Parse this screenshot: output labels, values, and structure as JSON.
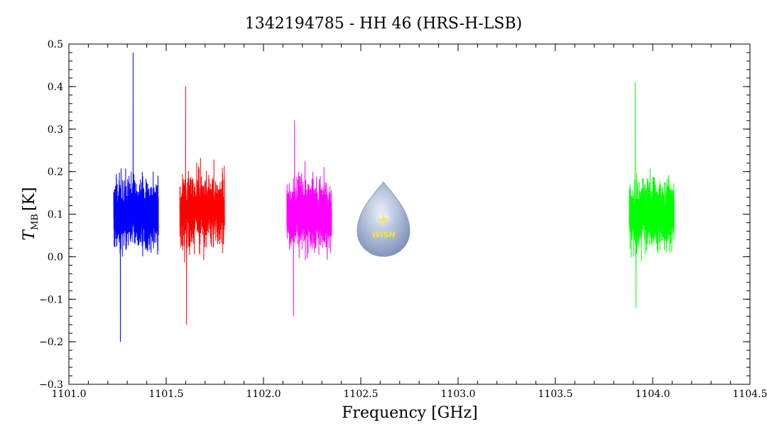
{
  "chart_data": {
    "type": "line",
    "title": "1342194785 - HH 46 (HRS-H-LSB)",
    "xlabel": "Frequency [GHz]",
    "ylabel_main": "T",
    "ylabel_sub": "MB",
    "ylabel_unit": "[K]",
    "xlim": [
      1101.0,
      1104.5
    ],
    "ylim": [
      -0.3,
      0.5
    ],
    "x_ticks": [
      1101.0,
      1101.5,
      1102.0,
      1102.5,
      1103.0,
      1103.5,
      1104.0,
      1104.5
    ],
    "x_tick_labels": [
      "1101.0",
      "1101.5",
      "1102.0",
      "1102.5",
      "1103.0",
      "1103.5",
      "1104.0",
      "1104.5"
    ],
    "y_ticks": [
      -0.3,
      -0.2,
      -0.1,
      0.0,
      0.1,
      0.2,
      0.3,
      0.4,
      0.5
    ],
    "y_tick_labels": [
      "−0.3",
      "−0.2",
      "−0.1",
      "0.0",
      "0.1",
      "0.2",
      "0.3",
      "0.4",
      "0.5"
    ],
    "grid": false,
    "series": [
      {
        "color": "#0000ff",
        "x_start": 1101.23,
        "x_end": 1101.46,
        "baseline": 0.1,
        "min": -0.2,
        "max": 0.48,
        "peak_x": 1101.33
      },
      {
        "color": "#ff0000",
        "x_start": 1101.57,
        "x_end": 1101.8,
        "baseline": 0.11,
        "min": -0.16,
        "max": 0.4,
        "peak_x": 1101.6
      },
      {
        "color": "#ff00ff",
        "x_start": 1102.12,
        "x_end": 1102.35,
        "baseline": 0.1,
        "min": -0.14,
        "max": 0.32,
        "peak_x": 1102.16
      },
      {
        "color": "#00ff00",
        "x_start": 1103.88,
        "x_end": 1104.11,
        "baseline": 0.1,
        "min": -0.12,
        "max": 0.41,
        "peak_x": 1103.91
      }
    ]
  },
  "logo": {
    "text": "WISH",
    "x": 1102.62,
    "y": 0.09
  }
}
